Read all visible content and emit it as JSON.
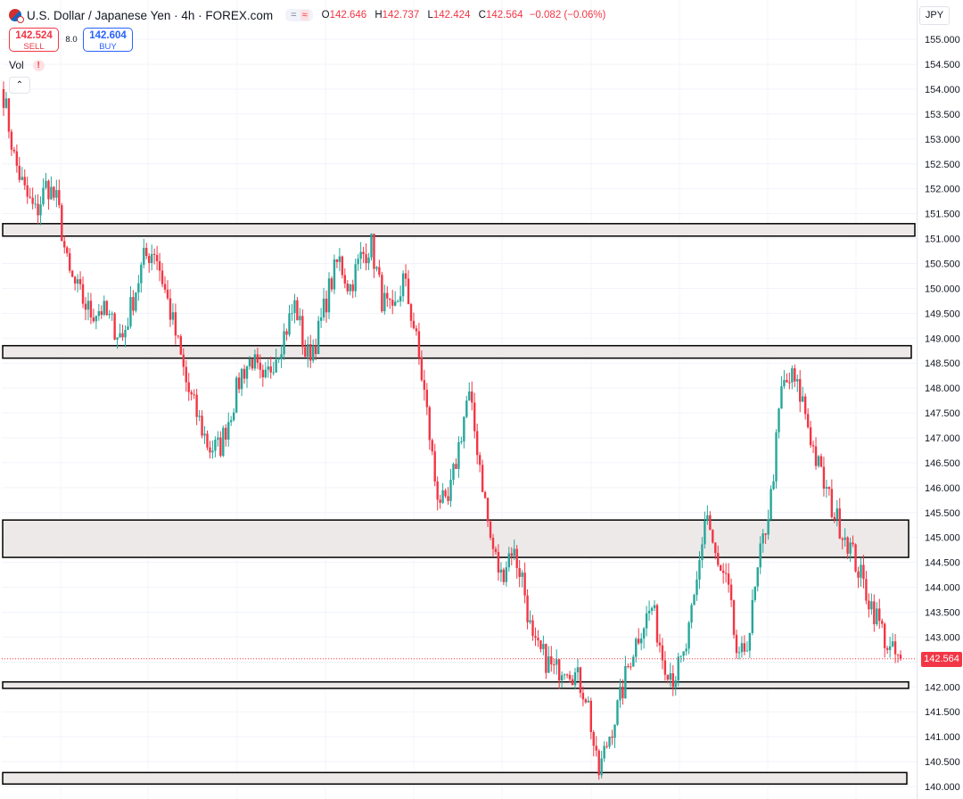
{
  "header": {
    "title": "U.S. Dollar / Japanese Yen · 4h · FOREX.com",
    "pill_left": "=",
    "pill_right": "≈",
    "ohlc": {
      "o_label": "O",
      "o": "142.646",
      "h_label": "H",
      "h": "142.737",
      "l_label": "L",
      "l": "142.424",
      "c_label": "C",
      "c": "142.564",
      "change": "−0.082 (−0.06%)"
    }
  },
  "trade": {
    "sell_price": "142.524",
    "sell_label": "SELL",
    "spread": "8.0",
    "buy_price": "142.604",
    "buy_label": "BUY"
  },
  "indicators": {
    "vol_label": "Vol",
    "warning_glyph": "!"
  },
  "controls": {
    "collapse_glyph": "⌃"
  },
  "axis": {
    "currency": "JPY"
  },
  "colors": {
    "up": "#26a69a",
    "down": "#f23645",
    "zone_fill": "#ede9e8",
    "zone_stroke": "#000000"
  },
  "chart_data": {
    "type": "candlestick",
    "symbol": "USDJPY",
    "timeframe": "4h",
    "ylim": [
      139.9,
      155.5
    ],
    "y_ticks": [
      "140.000",
      "140.500",
      "141.000",
      "141.500",
      "142.000",
      "142.500",
      "143.000",
      "143.500",
      "144.000",
      "144.500",
      "145.000",
      "145.500",
      "146.000",
      "146.500",
      "147.000",
      "147.500",
      "148.000",
      "148.500",
      "149.000",
      "149.500",
      "150.000",
      "150.500",
      "151.000",
      "151.500",
      "152.000",
      "152.500",
      "153.000",
      "153.500",
      "154.000",
      "154.500",
      "155.000"
    ],
    "last_price": 142.564,
    "last_price_label": "142.564",
    "zones": [
      {
        "low": 151.05,
        "high": 151.3
      },
      {
        "low": 148.6,
        "high": 148.85
      },
      {
        "low": 144.6,
        "high": 145.35
      },
      {
        "low": 141.97,
        "high": 142.1
      },
      {
        "low": 140.05,
        "high": 140.28
      }
    ],
    "close_path": [
      153.9,
      152.6,
      151.9,
      151.5,
      152.1,
      151.7,
      150.3,
      149.9,
      149.5,
      149.6,
      149.3,
      149.0,
      149.8,
      150.6,
      150.8,
      149.9,
      149.0,
      148.0,
      147.4,
      146.8,
      146.8,
      147.5,
      148.3,
      148.6,
      148.0,
      148.6,
      149.1,
      149.7,
      148.6,
      149.0,
      149.9,
      150.6,
      150.0,
      150.6,
      150.9,
      149.8,
      149.4,
      150.2,
      149.2,
      147.8,
      146.0,
      145.5,
      146.7,
      147.9,
      146.6,
      145.0,
      144.2,
      144.8,
      144.2,
      142.8,
      142.6,
      142.3,
      142.5,
      142.2,
      141.8,
      140.2,
      141.0,
      141.7,
      142.6,
      143.2,
      143.6,
      142.6,
      142.2,
      142.6,
      143.8,
      145.6,
      144.4,
      144.0,
      142.4,
      143.1,
      144.6,
      145.8,
      148.0,
      148.2,
      147.7,
      146.7,
      146.0,
      145.4,
      145.0,
      144.4,
      143.8,
      143.3,
      142.7,
      142.564
    ]
  }
}
